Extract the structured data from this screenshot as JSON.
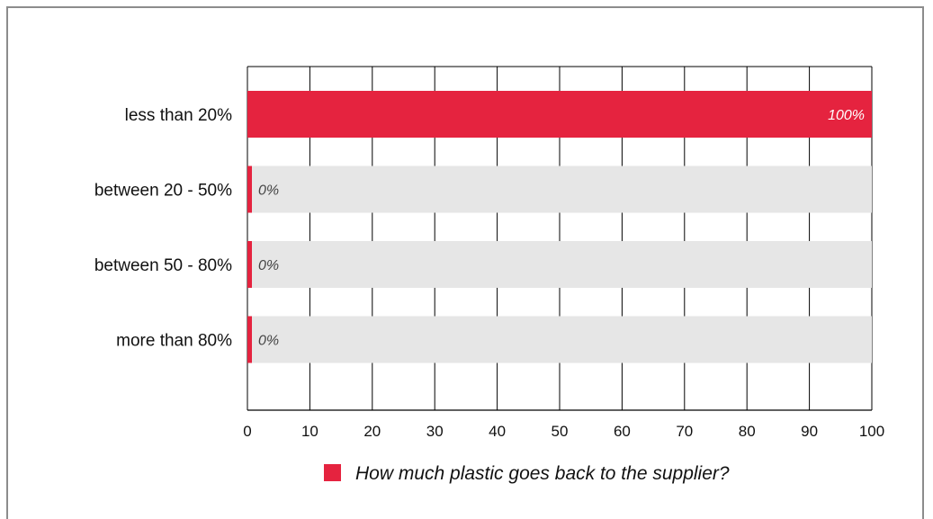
{
  "chart_data": {
    "type": "bar",
    "orientation": "horizontal",
    "categories": [
      "less than 20%",
      "between 20 - 50%",
      "between 50 - 80%",
      "more than  80%"
    ],
    "series": [
      {
        "name": "How much plastic goes back to the supplier?",
        "values": [
          100,
          0,
          0,
          0
        ],
        "labels": [
          "100%",
          "0%",
          "0%",
          "0%"
        ]
      }
    ],
    "xlim": [
      0,
      100
    ],
    "xticks": [
      "0",
      "10",
      "20",
      "30",
      "40",
      "50",
      "60",
      "70",
      "80",
      "90",
      "100"
    ],
    "grid": true,
    "legend_position": "bottom"
  },
  "colors": {
    "bar": "#e5233f",
    "track": "#e6e6e6",
    "grid": "#000000",
    "frame": "#8c8c8c"
  }
}
